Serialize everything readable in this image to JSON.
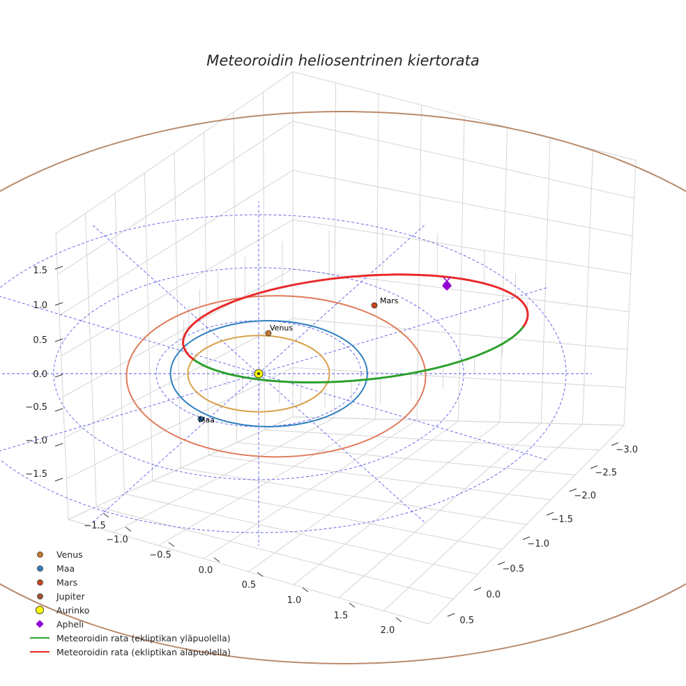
{
  "chart_data": {
    "type": "line",
    "title": "Meteoroidin heliosentrinen kiertorata",
    "xlabel": "",
    "ylabel": "",
    "zlabel": "",
    "axes": {
      "x_ticks": [
        "−1.5",
        "−1.0",
        "−0.5",
        "0.0",
        "0.5",
        "1.0",
        "1.5",
        "2.0"
      ],
      "y_ticks": [
        "−3.0",
        "−2.5",
        "−2.0",
        "−1.5",
        "−1.0",
        "−0.5",
        "0.0",
        "0.5"
      ],
      "z_ticks": [
        "1.5",
        "1.0",
        "0.5",
        "0.0",
        "−0.5",
        "−1.0",
        "−1.5"
      ],
      "xlim": [
        -1.75,
        2.25
      ],
      "ylim": [
        -3.25,
        0.75
      ],
      "zlim": [
        -1.75,
        1.75
      ],
      "grid": true
    },
    "bodies": [
      {
        "name": "Venus",
        "color": "#c8772a",
        "orbit_color": "#d9a24a",
        "radius_au": 0.72,
        "label": "Venus"
      },
      {
        "name": "Maa",
        "color": "#2f7fc1",
        "orbit_color": "#2f7fc1",
        "radius_au": 1.0,
        "label": "Maa"
      },
      {
        "name": "Mars",
        "color": "#c8461a",
        "orbit_color": "#e07a58",
        "radius_au": 1.52,
        "label": "Mars"
      },
      {
        "name": "Jupiter",
        "color": "#a0522d",
        "orbit_color": "#b98a6a",
        "radius_au": 5.2,
        "label": ""
      },
      {
        "name": "Aurinko",
        "color": "#ffff00",
        "label": ""
      }
    ],
    "meteoroid": {
      "perihelion_au": 1.0,
      "aphelion_au": 2.8,
      "series": [
        {
          "name": "Meteoroidin rata (ekliptikan yläpuolella)",
          "color": "#2ca02c"
        },
        {
          "name": "Meteoroidin rata (ekliptikan alapuolella)",
          "color": "#e8292a"
        }
      ],
      "aphelion_marker": {
        "name": "Apheli",
        "color": "#9400d3"
      }
    },
    "reference_circles_au": [
      1.0,
      2.0,
      3.0
    ],
    "legend_position": "lower-left"
  },
  "legend": [
    {
      "label": "Venus",
      "kind": "dot",
      "color": "#c8772a"
    },
    {
      "label": "Maa",
      "kind": "dot",
      "color": "#2f7fc1"
    },
    {
      "label": "Mars",
      "kind": "dot",
      "color": "#c8461a"
    },
    {
      "label": "Jupiter",
      "kind": "dot",
      "color": "#a0522d"
    },
    {
      "label": "Aurinko",
      "kind": "sun",
      "color": "#ffff00"
    },
    {
      "label": "Apheli",
      "kind": "diamond",
      "color": "#9400d3"
    },
    {
      "label": "Meteoroidin rata (ekliptikan yläpuolella)",
      "kind": "line",
      "color": "#2ca02c"
    },
    {
      "label": "Meteoroidin rata (ekliptikan alapuolella)",
      "kind": "line",
      "color": "#e8292a"
    }
  ]
}
